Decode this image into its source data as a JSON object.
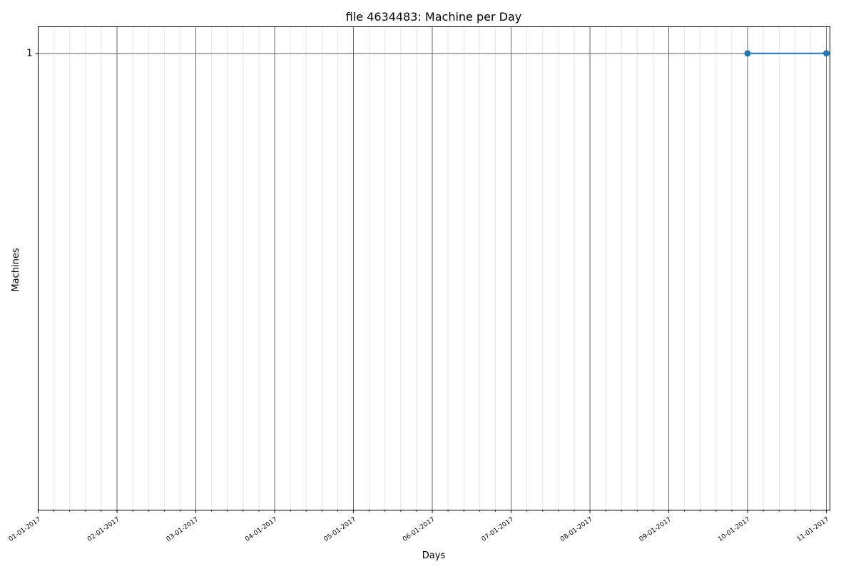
{
  "chart_data": {
    "type": "line",
    "title": "file 4634483: Machine per Day",
    "xlabel": "Days",
    "ylabel": "Machines",
    "x_ticks": [
      "01-01-2017",
      "02-01-2017",
      "03-01-2017",
      "04-01-2017",
      "05-01-2017",
      "06-01-2017",
      "07-01-2017",
      "08-01-2017",
      "09-01-2017",
      "10-01-2017",
      "11-01-2017"
    ],
    "minor_ticks_per_major": 5,
    "y_ticks": [
      {
        "label": "1",
        "value": 1
      }
    ],
    "ylim": [
      0.055,
      1.055
    ],
    "grid": true,
    "series": [
      {
        "x": [
          "10-01-2017",
          "11-01-2017"
        ],
        "y": [
          1,
          1
        ],
        "color": "#1f77b4",
        "marker": "circle"
      }
    ]
  }
}
